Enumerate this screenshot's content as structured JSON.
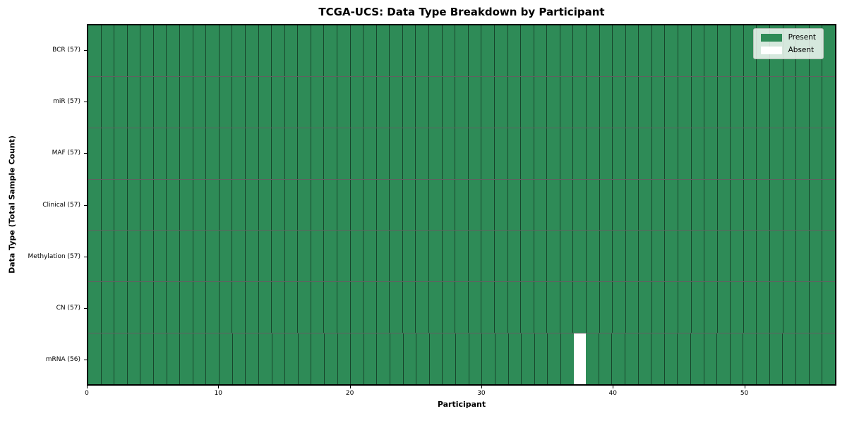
{
  "chart_data": {
    "type": "heatmap",
    "title": "TCGA-UCS: Data Type Breakdown by Participant",
    "xlabel": "Participant",
    "ylabel": "Data Type (Total Sample Count)",
    "n_participants": 57,
    "x_range": [
      0,
      57
    ],
    "x_ticks": [
      0,
      10,
      20,
      30,
      40,
      50
    ],
    "rows": [
      {
        "label": "BCR (57)",
        "data_type": "BCR",
        "present_count": 57,
        "absent_participants": []
      },
      {
        "label": "miR (57)",
        "data_type": "miR",
        "present_count": 57,
        "absent_participants": []
      },
      {
        "label": "MAF (57)",
        "data_type": "MAF",
        "present_count": 57,
        "absent_participants": []
      },
      {
        "label": "Clinical (57)",
        "data_type": "Clinical",
        "present_count": 57,
        "absent_participants": []
      },
      {
        "label": "Methylation (57)",
        "data_type": "Methylation",
        "present_count": 57,
        "absent_participants": []
      },
      {
        "label": "CN (57)",
        "data_type": "CN",
        "present_count": 57,
        "absent_participants": []
      },
      {
        "label": "mRNA (56)",
        "data_type": "mRNA",
        "present_count": 56,
        "absent_participants": [
          37
        ]
      }
    ],
    "legend": [
      {
        "label": "Present",
        "color": "#2e8b57"
      },
      {
        "label": "Absent",
        "color": "#ffffff"
      }
    ],
    "colors": {
      "present": "#2e8b57",
      "absent": "#ffffff"
    },
    "grid": true,
    "legend_position": "upper right"
  }
}
